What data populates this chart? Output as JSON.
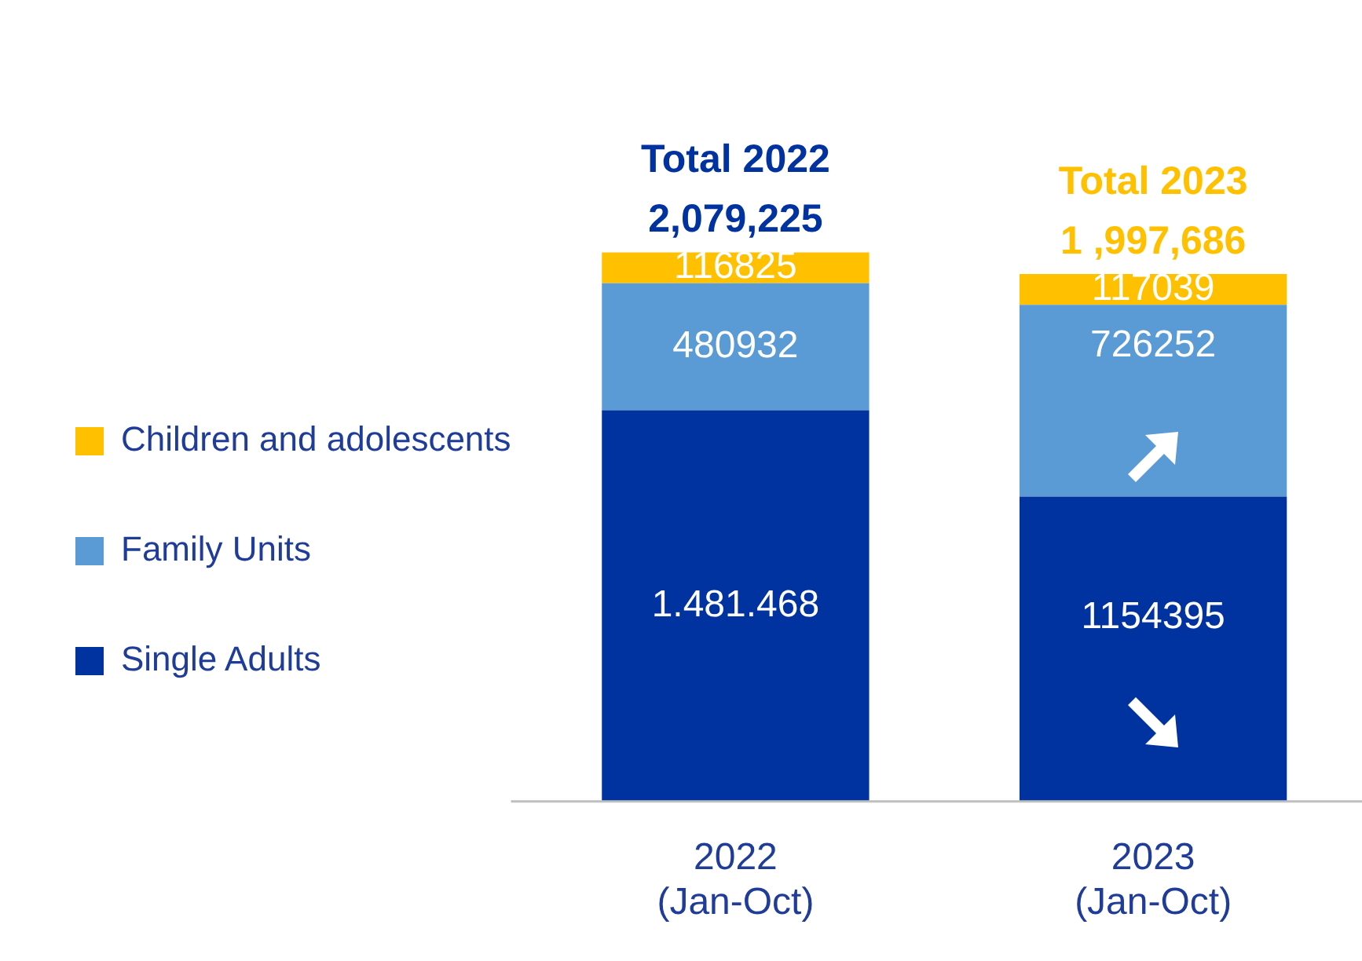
{
  "chart_data": {
    "type": "bar",
    "stacked": true,
    "categories": [
      "2022 (Jan-Oct)",
      "2023 (Jan-Oct)"
    ],
    "series": [
      {
        "name": "Single Adults",
        "color": "#0033a0",
        "values": [
          1481468,
          1154395
        ],
        "value_labels": [
          "1.481.468",
          "1154395"
        ]
      },
      {
        "name": "Family Units",
        "color": "#5b9bd5",
        "values": [
          480932,
          726252
        ],
        "value_labels": [
          "480932",
          "726252"
        ]
      },
      {
        "name": "Children and adolescents",
        "color": "#ffc000",
        "values": [
          116825,
          117039
        ],
        "value_labels": [
          "116825",
          "117039"
        ]
      }
    ],
    "totals": [
      "2,079,225",
      "1 ,997,686"
    ],
    "annotations": [
      "Total 2022",
      "Total 2023"
    ],
    "legend": "left",
    "grid": false,
    "tick_labels": "x"
  }
}
